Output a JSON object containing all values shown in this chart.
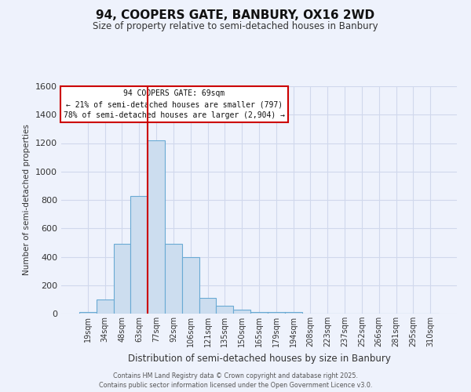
{
  "title": "94, COOPERS GATE, BANBURY, OX16 2WD",
  "subtitle": "Size of property relative to semi-detached houses in Banbury",
  "xlabel": "Distribution of semi-detached houses by size in Banbury",
  "ylabel": "Number of semi-detached properties",
  "bin_labels": [
    "19sqm",
    "34sqm",
    "48sqm",
    "63sqm",
    "77sqm",
    "92sqm",
    "106sqm",
    "121sqm",
    "135sqm",
    "150sqm",
    "165sqm",
    "179sqm",
    "194sqm",
    "208sqm",
    "223sqm",
    "237sqm",
    "252sqm",
    "266sqm",
    "281sqm",
    "295sqm",
    "310sqm"
  ],
  "bar_values": [
    10,
    100,
    490,
    830,
    1220,
    490,
    400,
    110,
    55,
    25,
    10,
    10,
    10,
    0,
    0,
    0,
    0,
    0,
    0,
    0,
    0
  ],
  "bar_color": "#ccddef",
  "bar_edge_color": "#6aaad4",
  "grid_color": "#d0d8ec",
  "bg_color": "#eef2fc",
  "vline_color": "#cc0000",
  "vline_pos": 3.5,
  "annotation_title": "94 COOPERS GATE: 69sqm",
  "annotation_line1": "← 21% of semi-detached houses are smaller (797)",
  "annotation_line2": "78% of semi-detached houses are larger (2,904) →",
  "annotation_box_color": "#ffffff",
  "annotation_box_edge": "#cc0000",
  "ylim": [
    0,
    1600
  ],
  "yticks": [
    0,
    200,
    400,
    600,
    800,
    1000,
    1200,
    1400,
    1600
  ],
  "footer1": "Contains HM Land Registry data © Crown copyright and database right 2025.",
  "footer2": "Contains public sector information licensed under the Open Government Licence v3.0."
}
